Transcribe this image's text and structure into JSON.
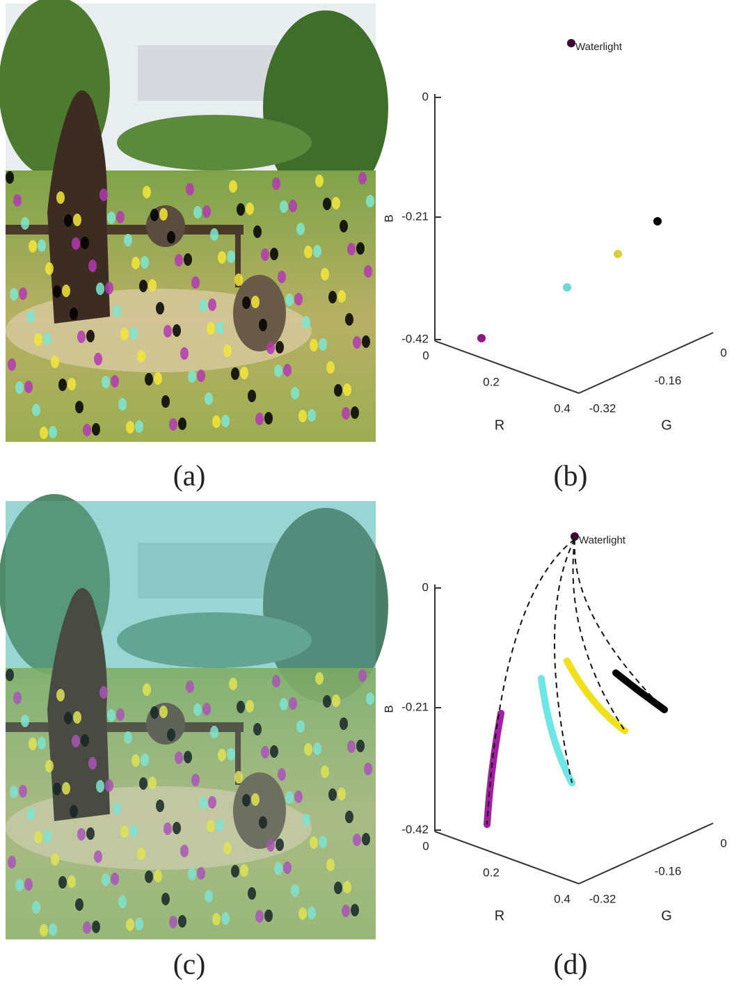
{
  "panels": [
    {
      "caption": "(a)"
    },
    {
      "caption": "(b)",
      "plot": {
        "light_label": "Waterlight",
        "b_label": "B",
        "b_ticks": [
          "0",
          "-0.21",
          "-0.42"
        ],
        "r_label": "R",
        "r_ticks": [
          "0",
          "0.2",
          "0.4"
        ],
        "g_label": "G",
        "g_ticks": [
          "-0.32",
          "-0.16",
          "0"
        ]
      }
    },
    {
      "caption": "(c)"
    },
    {
      "caption": "(d)",
      "plot": {
        "light_label": "Waterlight",
        "b_label": "B",
        "b_ticks": [
          "0",
          "-0.21",
          "-0.42"
        ],
        "r_label": "R",
        "r_ticks": [
          "0",
          "0.2",
          "0.4"
        ],
        "g_label": "G",
        "g_ticks": [
          "-0.32",
          "-0.16",
          "0"
        ]
      }
    }
  ]
}
